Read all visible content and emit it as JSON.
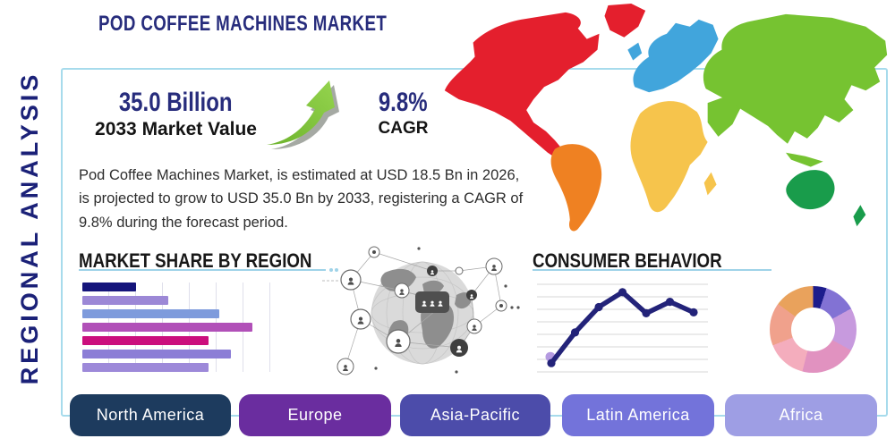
{
  "page": {
    "title": "POD COFFEE MACHINES MARKET",
    "side_label": "REGIONAL ANALYSIS"
  },
  "stats": {
    "market_value": "35.0 Billion",
    "market_value_label": "2033 Market Value",
    "cagr_value": "9.8%",
    "cagr_label": "CAGR",
    "arrow_color": "#7fc63b"
  },
  "description": "Pod Coffee Machines Market, is estimated at USD 18.5 Bn in 2026, is projected to grow to USD 35.0 Bn by 2033, registering a CAGR of 9.8% during the forecast period.",
  "sections": {
    "market_share_title": "MARKET SHARE BY REGION",
    "consumer_behavior_title": "CONSUMER BEHAVIOR"
  },
  "map": {
    "colors": {
      "north_america": "#e41f2d",
      "greenland": "#e41f2d",
      "south_america": "#ef8122",
      "europe": "#41a5dc",
      "uk": "#41a5dc",
      "africa": "#f6c44c",
      "madagascar": "#f6c44c",
      "middle_east": "#76c331",
      "asia": "#76c331",
      "japan": "#76c331",
      "indonesia": "#76c331",
      "australia": "#199c4b",
      "new_zealand": "#199c4b"
    }
  },
  "chart_data": [
    {
      "type": "bar",
      "title": "MARKET SHARE BY REGION",
      "orientation": "horizontal",
      "values": [
        28,
        45,
        72,
        89,
        66,
        78,
        66
      ],
      "xlim": [
        0,
        100
      ],
      "grid": true,
      "colors": [
        "#15157b",
        "#9c88d6",
        "#7e9bdc",
        "#b150b8",
        "#cb0f7d",
        "#8c7ed6",
        "#9d89d9"
      ]
    },
    {
      "type": "line",
      "title": "CONSUMER BEHAVIOR",
      "x": [
        1,
        2,
        3,
        4,
        5,
        6,
        7
      ],
      "values": [
        1.0,
        4.5,
        7.4,
        9.1,
        6.7,
        8.0,
        6.8
      ],
      "ylim": [
        0,
        10
      ],
      "grid": true,
      "line_color": "#232379",
      "start_halo_color": "#b49ae0"
    },
    {
      "type": "pie",
      "donut": true,
      "values": [
        5,
        12,
        16,
        21,
        15,
        16,
        15
      ],
      "colors": [
        "#1c1c8c",
        "#8272d4",
        "#c79ade",
        "#e192c0",
        "#f4adbd",
        "#f0a18c",
        "#e9a25c"
      ]
    }
  ],
  "region_buttons": [
    {
      "label": "North America",
      "color": "#1d3b5e"
    },
    {
      "label": "Europe",
      "color": "#6a2d9f"
    },
    {
      "label": "Asia-Pacific",
      "color": "#4c4caa"
    },
    {
      "label": "Latin America",
      "color": "#7373da"
    },
    {
      "label": "Africa",
      "color": "#9e9ee4"
    }
  ]
}
